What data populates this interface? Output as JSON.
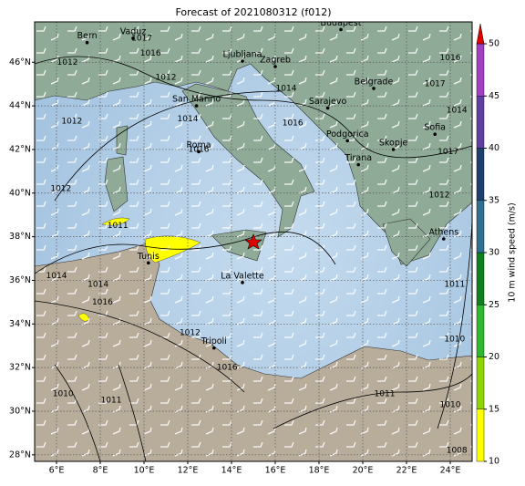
{
  "map": {
    "title": "Forecast of 2021080312 (f012)",
    "xlim": [
      5,
      25
    ],
    "ylim": [
      27.7,
      47.85
    ],
    "xticks": [
      {
        "value": 6,
        "label": "6°E"
      },
      {
        "value": 8,
        "label": "8°E"
      },
      {
        "value": 10,
        "label": "10°E"
      },
      {
        "value": 12,
        "label": "12°E"
      },
      {
        "value": 14,
        "label": "14°E"
      },
      {
        "value": 16,
        "label": "16°E"
      },
      {
        "value": 18,
        "label": "18°E"
      },
      {
        "value": 20,
        "label": "20°E"
      },
      {
        "value": 22,
        "label": "22°E"
      },
      {
        "value": 24,
        "label": "24°E"
      }
    ],
    "yticks": [
      {
        "value": 28,
        "label": "28°N"
      },
      {
        "value": 30,
        "label": "30°N"
      },
      {
        "value": 32,
        "label": "32°N"
      },
      {
        "value": 34,
        "label": "34°N"
      },
      {
        "value": 36,
        "label": "36°N"
      },
      {
        "value": 38,
        "label": "38°N"
      },
      {
        "value": 40,
        "label": "40°N"
      },
      {
        "value": 42,
        "label": "42°N"
      },
      {
        "value": 44,
        "label": "44°N"
      },
      {
        "value": 46,
        "label": "46°N"
      }
    ],
    "grid": true,
    "cities": [
      {
        "name": "Bern",
        "lon": 7.4,
        "lat": 46.9
      },
      {
        "name": "Vaduz",
        "lon": 9.5,
        "lat": 47.1
      },
      {
        "name": "Budapest",
        "lon": 19.0,
        "lat": 47.5
      },
      {
        "name": "Ljubljana",
        "lon": 14.5,
        "lat": 46.05
      },
      {
        "name": "Zagreb",
        "lon": 16.0,
        "lat": 45.8
      },
      {
        "name": "San Marino",
        "lon": 12.4,
        "lat": 44.0
      },
      {
        "name": "Belgrade",
        "lon": 20.5,
        "lat": 44.8
      },
      {
        "name": "Sarajevo",
        "lon": 18.4,
        "lat": 43.9
      },
      {
        "name": "Sofia",
        "lon": 23.3,
        "lat": 42.7
      },
      {
        "name": "Podgorica",
        "lon": 19.3,
        "lat": 42.4
      },
      {
        "name": "Skopje",
        "lon": 21.4,
        "lat": 42.0
      },
      {
        "name": "Roma",
        "lon": 12.5,
        "lat": 41.9
      },
      {
        "name": "Tirana",
        "lon": 19.8,
        "lat": 41.3
      },
      {
        "name": "Athens",
        "lon": 23.7,
        "lat": 37.9
      },
      {
        "name": "Tunis",
        "lon": 10.2,
        "lat": 36.8
      },
      {
        "name": "La Valette",
        "lon": 14.5,
        "lat": 35.9
      },
      {
        "name": "Tripoli",
        "lon": 13.2,
        "lat": 32.9
      }
    ],
    "isobar_labels": [
      {
        "value": 1012,
        "lon": 6.5,
        "lat": 46.0
      },
      {
        "value": 1016,
        "lon": 10.3,
        "lat": 46.4
      },
      {
        "value": 1017,
        "lon": 9.9,
        "lat": 47.1
      },
      {
        "value": 1012,
        "lon": 11.0,
        "lat": 45.3
      },
      {
        "value": 1014,
        "lon": 16.5,
        "lat": 44.8
      },
      {
        "value": 1014,
        "lon": 12.0,
        "lat": 43.4
      },
      {
        "value": 1016,
        "lon": 16.8,
        "lat": 43.2
      },
      {
        "value": 1016,
        "lon": 12.5,
        "lat": 42.0
      },
      {
        "value": 1012,
        "lon": 6.7,
        "lat": 43.3
      },
      {
        "value": 1012,
        "lon": 6.2,
        "lat": 40.2
      },
      {
        "value": 1011,
        "lon": 8.8,
        "lat": 38.5
      },
      {
        "value": 1016,
        "lon": 24.0,
        "lat": 46.2
      },
      {
        "value": 1017,
        "lon": 23.3,
        "lat": 45.0
      },
      {
        "value": 1014,
        "lon": 24.3,
        "lat": 43.8
      },
      {
        "value": 1017,
        "lon": 23.9,
        "lat": 41.9
      },
      {
        "value": 1012,
        "lon": 23.5,
        "lat": 39.9
      },
      {
        "value": 1011,
        "lon": 24.2,
        "lat": 35.8
      },
      {
        "value": 1010,
        "lon": 24.2,
        "lat": 33.3
      },
      {
        "value": 1010,
        "lon": 24.0,
        "lat": 30.3
      },
      {
        "value": 1008,
        "lon": 24.3,
        "lat": 28.2
      },
      {
        "value": 1011,
        "lon": 21.0,
        "lat": 30.8
      },
      {
        "value": 1016,
        "lon": 13.8,
        "lat": 32.0
      },
      {
        "value": 1012,
        "lon": 12.1,
        "lat": 33.6
      },
      {
        "value": 1016,
        "lon": 8.1,
        "lat": 35.0
      },
      {
        "value": 1014,
        "lon": 6.0,
        "lat": 36.2
      },
      {
        "value": 1014,
        "lon": 7.9,
        "lat": 35.8
      },
      {
        "value": 1010,
        "lon": 6.3,
        "lat": 30.8
      },
      {
        "value": 1011,
        "lon": 8.5,
        "lat": 30.5
      }
    ],
    "colorbar": {
      "label": "10 m wind speed (m/s)",
      "lim": [
        10,
        50
      ],
      "ticks": [
        10,
        15,
        20,
        25,
        30,
        35,
        40,
        45,
        50
      ],
      "colors": [
        "#ffff00",
        "#8fd400",
        "#2fb82f",
        "#0f7f1f",
        "#2f6f8f",
        "#1f3f6f",
        "#5f3fa0",
        "#a040c0"
      ],
      "extend_color": "#e00000"
    }
  }
}
